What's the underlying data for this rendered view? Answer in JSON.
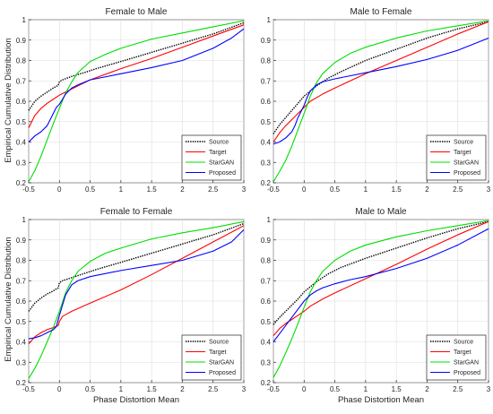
{
  "figure": {
    "ylabel": "Empirical Cumulative Distribution",
    "xlabel": "Phase Distortion Mean"
  },
  "chart_data": [
    {
      "type": "line",
      "title": "Female to Male",
      "xlabel": "",
      "ylabel": "Empirical Cumulative Distribution",
      "xlim": [
        -0.5,
        3
      ],
      "ylim": [
        0.2,
        1
      ],
      "xticks": [
        "-0.5",
        "0",
        "0.5",
        "1",
        "1.5",
        "2",
        "2.5",
        "3"
      ],
      "yticks": [
        "0.2",
        "0.3",
        "0.4",
        "0.5",
        "0.6",
        "0.7",
        "0.8",
        "0.9",
        "1"
      ],
      "grid": true,
      "legend_position": "bottom-right",
      "series": [
        {
          "name": "Source",
          "color": "#000000",
          "style": "dotted",
          "x": [
            -0.5,
            -0.4,
            -0.3,
            -0.2,
            -0.1,
            -0.02,
            0,
            0.05,
            0.2,
            0.4,
            0.6,
            1.0,
            1.5,
            2.0,
            2.5,
            3.0
          ],
          "y": [
            0.555,
            0.6,
            0.625,
            0.645,
            0.665,
            0.678,
            0.695,
            0.705,
            0.722,
            0.74,
            0.76,
            0.795,
            0.84,
            0.885,
            0.93,
            0.985
          ]
        },
        {
          "name": "Target",
          "color": "#ff0000",
          "style": "solid",
          "x": [
            -0.5,
            -0.4,
            -0.3,
            -0.2,
            -0.1,
            0,
            0.1,
            0.3,
            0.5,
            1.0,
            1.5,
            2.0,
            2.5,
            3.0
          ],
          "y": [
            0.47,
            0.53,
            0.565,
            0.59,
            0.61,
            0.63,
            0.645,
            0.675,
            0.705,
            0.76,
            0.81,
            0.865,
            0.92,
            0.975
          ]
        },
        {
          "name": "StarGAN",
          "color": "#00dd00",
          "style": "solid",
          "x": [
            -0.5,
            -0.4,
            -0.3,
            -0.2,
            -0.1,
            0,
            0.1,
            0.2,
            0.3,
            0.5,
            0.75,
            1.0,
            1.5,
            2.0,
            2.5,
            3.0
          ],
          "y": [
            0.205,
            0.26,
            0.33,
            0.41,
            0.49,
            0.565,
            0.64,
            0.695,
            0.74,
            0.795,
            0.83,
            0.86,
            0.905,
            0.935,
            0.965,
            0.995
          ]
        },
        {
          "name": "Proposed",
          "color": "#0000ff",
          "style": "solid",
          "x": [
            -0.5,
            -0.4,
            -0.3,
            -0.2,
            -0.15,
            -0.1,
            -0.05,
            0,
            0.05,
            0.1,
            0.2,
            0.3,
            0.5,
            1.0,
            1.5,
            2.0,
            2.5,
            2.8,
            3.0
          ],
          "y": [
            0.4,
            0.43,
            0.45,
            0.48,
            0.51,
            0.54,
            0.57,
            0.585,
            0.61,
            0.635,
            0.665,
            0.68,
            0.705,
            0.735,
            0.765,
            0.8,
            0.86,
            0.91,
            0.955
          ]
        }
      ]
    },
    {
      "type": "line",
      "title": "Male to Female",
      "xlabel": "",
      "ylabel": "",
      "xlim": [
        -0.5,
        3
      ],
      "ylim": [
        0.2,
        1
      ],
      "xticks": [
        "-0.5",
        "0",
        "0.5",
        "1",
        "1.5",
        "2",
        "2.5",
        "3"
      ],
      "yticks": [
        "0.2",
        "0.3",
        "0.4",
        "0.5",
        "0.6",
        "0.7",
        "0.8",
        "0.9",
        "1"
      ],
      "grid": true,
      "legend_position": "bottom-right",
      "series": [
        {
          "name": "Source",
          "color": "#000000",
          "style": "dotted",
          "x": [
            -0.5,
            -0.4,
            -0.3,
            -0.2,
            -0.1,
            0,
            0.1,
            0.2,
            0.4,
            0.6,
            1.0,
            1.5,
            2.0,
            2.5,
            3.0
          ],
          "y": [
            0.44,
            0.485,
            0.52,
            0.555,
            0.59,
            0.625,
            0.65,
            0.675,
            0.715,
            0.745,
            0.8,
            0.855,
            0.91,
            0.955,
            0.99
          ]
        },
        {
          "name": "Target",
          "color": "#ff0000",
          "style": "solid",
          "x": [
            -0.5,
            -0.4,
            -0.3,
            -0.2,
            -0.1,
            0,
            0.1,
            0.3,
            0.5,
            1.0,
            1.5,
            2.0,
            2.5,
            3.0
          ],
          "y": [
            0.4,
            0.445,
            0.48,
            0.51,
            0.54,
            0.57,
            0.6,
            0.635,
            0.665,
            0.735,
            0.8,
            0.865,
            0.93,
            0.99
          ]
        },
        {
          "name": "StarGAN",
          "color": "#00dd00",
          "style": "solid",
          "x": [
            -0.5,
            -0.4,
            -0.3,
            -0.2,
            -0.1,
            0,
            0.1,
            0.2,
            0.3,
            0.5,
            0.75,
            1.0,
            1.5,
            2.0,
            2.5,
            3.0
          ],
          "y": [
            0.205,
            0.255,
            0.31,
            0.38,
            0.46,
            0.54,
            0.625,
            0.69,
            0.735,
            0.79,
            0.835,
            0.865,
            0.91,
            0.945,
            0.97,
            0.995
          ]
        },
        {
          "name": "Proposed",
          "color": "#0000ff",
          "style": "solid",
          "x": [
            -0.5,
            -0.4,
            -0.3,
            -0.2,
            -0.15,
            -0.1,
            -0.05,
            0,
            0.05,
            0.1,
            0.2,
            0.3,
            0.5,
            1.0,
            1.5,
            2.0,
            2.5,
            3.0
          ],
          "y": [
            0.39,
            0.4,
            0.42,
            0.45,
            0.48,
            0.52,
            0.55,
            0.58,
            0.62,
            0.65,
            0.68,
            0.695,
            0.71,
            0.74,
            0.77,
            0.805,
            0.85,
            0.91
          ]
        }
      ]
    },
    {
      "type": "line",
      "title": "Female to Female",
      "xlabel": "Phase Distortion Mean",
      "ylabel": "Empirical Cumulative Distribution",
      "xlim": [
        -0.5,
        3
      ],
      "ylim": [
        0.2,
        1
      ],
      "xticks": [
        "-0.5",
        "0",
        "0.5",
        "1",
        "1.5",
        "2",
        "2.5",
        "3"
      ],
      "yticks": [
        "0.2",
        "0.3",
        "0.4",
        "0.5",
        "0.6",
        "0.7",
        "0.8",
        "0.9",
        "1"
      ],
      "grid": true,
      "legend_position": "bottom-right",
      "series": [
        {
          "name": "Source",
          "color": "#000000",
          "style": "dotted",
          "x": [
            -0.5,
            -0.4,
            -0.3,
            -0.2,
            -0.1,
            -0.02,
            0,
            0.05,
            0.2,
            0.4,
            0.6,
            1.0,
            1.5,
            2.0,
            2.5,
            3.0
          ],
          "y": [
            0.55,
            0.59,
            0.615,
            0.635,
            0.65,
            0.665,
            0.69,
            0.7,
            0.715,
            0.735,
            0.755,
            0.79,
            0.835,
            0.88,
            0.925,
            0.98
          ]
        },
        {
          "name": "Target",
          "color": "#ff0000",
          "style": "solid",
          "x": [
            -0.5,
            -0.4,
            -0.3,
            -0.2,
            -0.1,
            -0.02,
            0,
            0.05,
            0.2,
            0.5,
            1.0,
            1.5,
            2.0,
            2.5,
            3.0
          ],
          "y": [
            0.39,
            0.425,
            0.445,
            0.46,
            0.47,
            0.48,
            0.5,
            0.525,
            0.55,
            0.59,
            0.655,
            0.73,
            0.81,
            0.89,
            0.97
          ]
        },
        {
          "name": "StarGAN",
          "color": "#00dd00",
          "style": "solid",
          "x": [
            -0.5,
            -0.4,
            -0.3,
            -0.2,
            -0.1,
            0,
            0.1,
            0.2,
            0.3,
            0.5,
            0.75,
            1.0,
            1.5,
            2.0,
            2.5,
            3.0
          ],
          "y": [
            0.22,
            0.27,
            0.33,
            0.4,
            0.47,
            0.55,
            0.64,
            0.7,
            0.745,
            0.795,
            0.835,
            0.86,
            0.905,
            0.935,
            0.96,
            0.99
          ]
        },
        {
          "name": "Proposed",
          "color": "#0000ff",
          "style": "solid",
          "x": [
            -0.5,
            -0.4,
            -0.3,
            -0.2,
            -0.1,
            -0.05,
            0,
            0.05,
            0.1,
            0.2,
            0.3,
            0.5,
            1.0,
            1.5,
            2.0,
            2.5,
            2.8,
            3.0
          ],
          "y": [
            0.415,
            0.42,
            0.43,
            0.445,
            0.46,
            0.475,
            0.53,
            0.58,
            0.63,
            0.68,
            0.7,
            0.72,
            0.75,
            0.775,
            0.8,
            0.845,
            0.89,
            0.95
          ]
        }
      ]
    },
    {
      "type": "line",
      "title": "Male to Male",
      "xlabel": "Phase Distortion Mean",
      "ylabel": "",
      "xlim": [
        -0.5,
        3
      ],
      "ylim": [
        0.2,
        1
      ],
      "xticks": [
        "-0.5",
        "0",
        "0.5",
        "1",
        "1.5",
        "2",
        "2.5",
        "3"
      ],
      "yticks": [
        "0.2",
        "0.3",
        "0.4",
        "0.5",
        "0.6",
        "0.7",
        "0.8",
        "0.9",
        "1"
      ],
      "grid": true,
      "legend_position": "bottom-right",
      "series": [
        {
          "name": "Source",
          "color": "#000000",
          "style": "dotted",
          "x": [
            -0.5,
            -0.4,
            -0.3,
            -0.2,
            -0.1,
            0,
            0.1,
            0.2,
            0.4,
            0.6,
            1.0,
            1.5,
            2.0,
            2.5,
            3.0
          ],
          "y": [
            0.485,
            0.52,
            0.55,
            0.58,
            0.61,
            0.645,
            0.67,
            0.695,
            0.735,
            0.765,
            0.81,
            0.86,
            0.91,
            0.955,
            0.99
          ]
        },
        {
          "name": "Target",
          "color": "#ff0000",
          "style": "solid",
          "x": [
            -0.5,
            -0.4,
            -0.3,
            -0.2,
            -0.1,
            0,
            0.1,
            0.3,
            0.5,
            1.0,
            1.5,
            2.0,
            2.5,
            3.0
          ],
          "y": [
            0.43,
            0.465,
            0.49,
            0.51,
            0.53,
            0.55,
            0.575,
            0.61,
            0.64,
            0.71,
            0.78,
            0.855,
            0.925,
            0.99
          ]
        },
        {
          "name": "StarGAN",
          "color": "#00dd00",
          "style": "solid",
          "x": [
            -0.5,
            -0.4,
            -0.3,
            -0.2,
            -0.1,
            0,
            0.1,
            0.2,
            0.3,
            0.5,
            0.75,
            1.0,
            1.5,
            2.0,
            2.5,
            3.0
          ],
          "y": [
            0.225,
            0.28,
            0.345,
            0.415,
            0.49,
            0.57,
            0.645,
            0.7,
            0.745,
            0.8,
            0.845,
            0.875,
            0.915,
            0.945,
            0.97,
            0.995
          ]
        },
        {
          "name": "Proposed",
          "color": "#0000ff",
          "style": "solid",
          "x": [
            -0.5,
            -0.4,
            -0.3,
            -0.2,
            -0.1,
            0,
            0.1,
            0.2,
            0.3,
            0.5,
            0.75,
            1.0,
            1.5,
            2.0,
            2.5,
            3.0
          ],
          "y": [
            0.4,
            0.44,
            0.48,
            0.52,
            0.56,
            0.6,
            0.63,
            0.65,
            0.665,
            0.685,
            0.705,
            0.72,
            0.76,
            0.81,
            0.875,
            0.955
          ]
        }
      ]
    }
  ]
}
